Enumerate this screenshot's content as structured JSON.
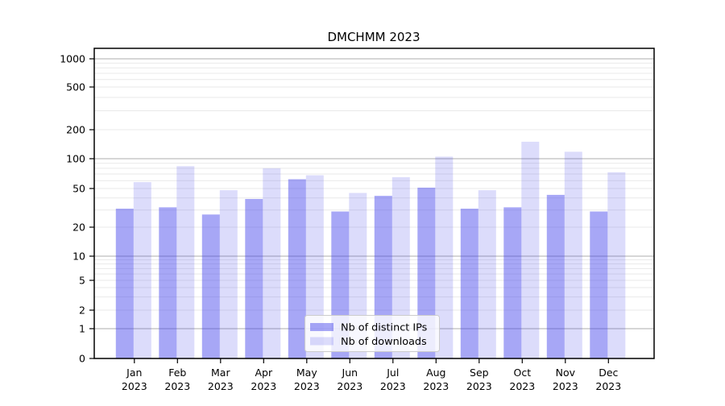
{
  "title": "DMCHMM 2023",
  "legend": {
    "items": [
      {
        "label": "Nb of distinct IPs",
        "series": "ips"
      },
      {
        "label": "Nb of downloads",
        "series": "downloads"
      }
    ],
    "position": "lower center"
  },
  "colors": {
    "ips_bar": "rgba(60,60,235,0.45)",
    "downloads_bar": "rgba(60,60,235,0.18)",
    "axis": "#000000",
    "grid_major": "#bdbdbd",
    "grid_minor": "#e9e9e9",
    "legend_border": "#cccccc",
    "legend_background": "rgba(255,255,255,0.8)"
  },
  "y_axis": {
    "tick_labels": [
      "0",
      "1",
      "2",
      "5",
      "10",
      "20",
      "50",
      "100",
      "200",
      "500",
      "1000"
    ],
    "tick_values": [
      0,
      1,
      2,
      5,
      10,
      20,
      50,
      100,
      200,
      500,
      1000
    ]
  },
  "x_axis": {
    "months": [
      "Jan",
      "Feb",
      "Mar",
      "Apr",
      "May",
      "Jun",
      "Jul",
      "Aug",
      "Sep",
      "Oct",
      "Nov",
      "Dec"
    ],
    "year": "2023"
  },
  "chart_data": {
    "type": "bar",
    "title": "DMCHMM 2023",
    "xlabel": "",
    "ylabel": "",
    "categories": [
      "Jan 2023",
      "Feb 2023",
      "Mar 2023",
      "Apr 2023",
      "May 2023",
      "Jun 2023",
      "Jul 2023",
      "Aug 2023",
      "Sep 2023",
      "Oct 2023",
      "Nov 2023",
      "Dec 2023"
    ],
    "series": [
      {
        "name": "Nb of distinct IPs",
        "values": [
          31,
          32,
          27,
          39,
          62,
          29,
          42,
          51,
          31,
          32,
          43,
          29
        ]
      },
      {
        "name": "Nb of downloads",
        "values": [
          58,
          84,
          48,
          80,
          68,
          45,
          65,
          105,
          48,
          150,
          118,
          73
        ]
      }
    ],
    "yscale": "symlog-like",
    "yticks": [
      0,
      1,
      2,
      5,
      10,
      20,
      50,
      100,
      200,
      500,
      1000
    ],
    "ylim": [
      0,
      1000
    ],
    "grid": "both",
    "legend_position": "lower center"
  }
}
